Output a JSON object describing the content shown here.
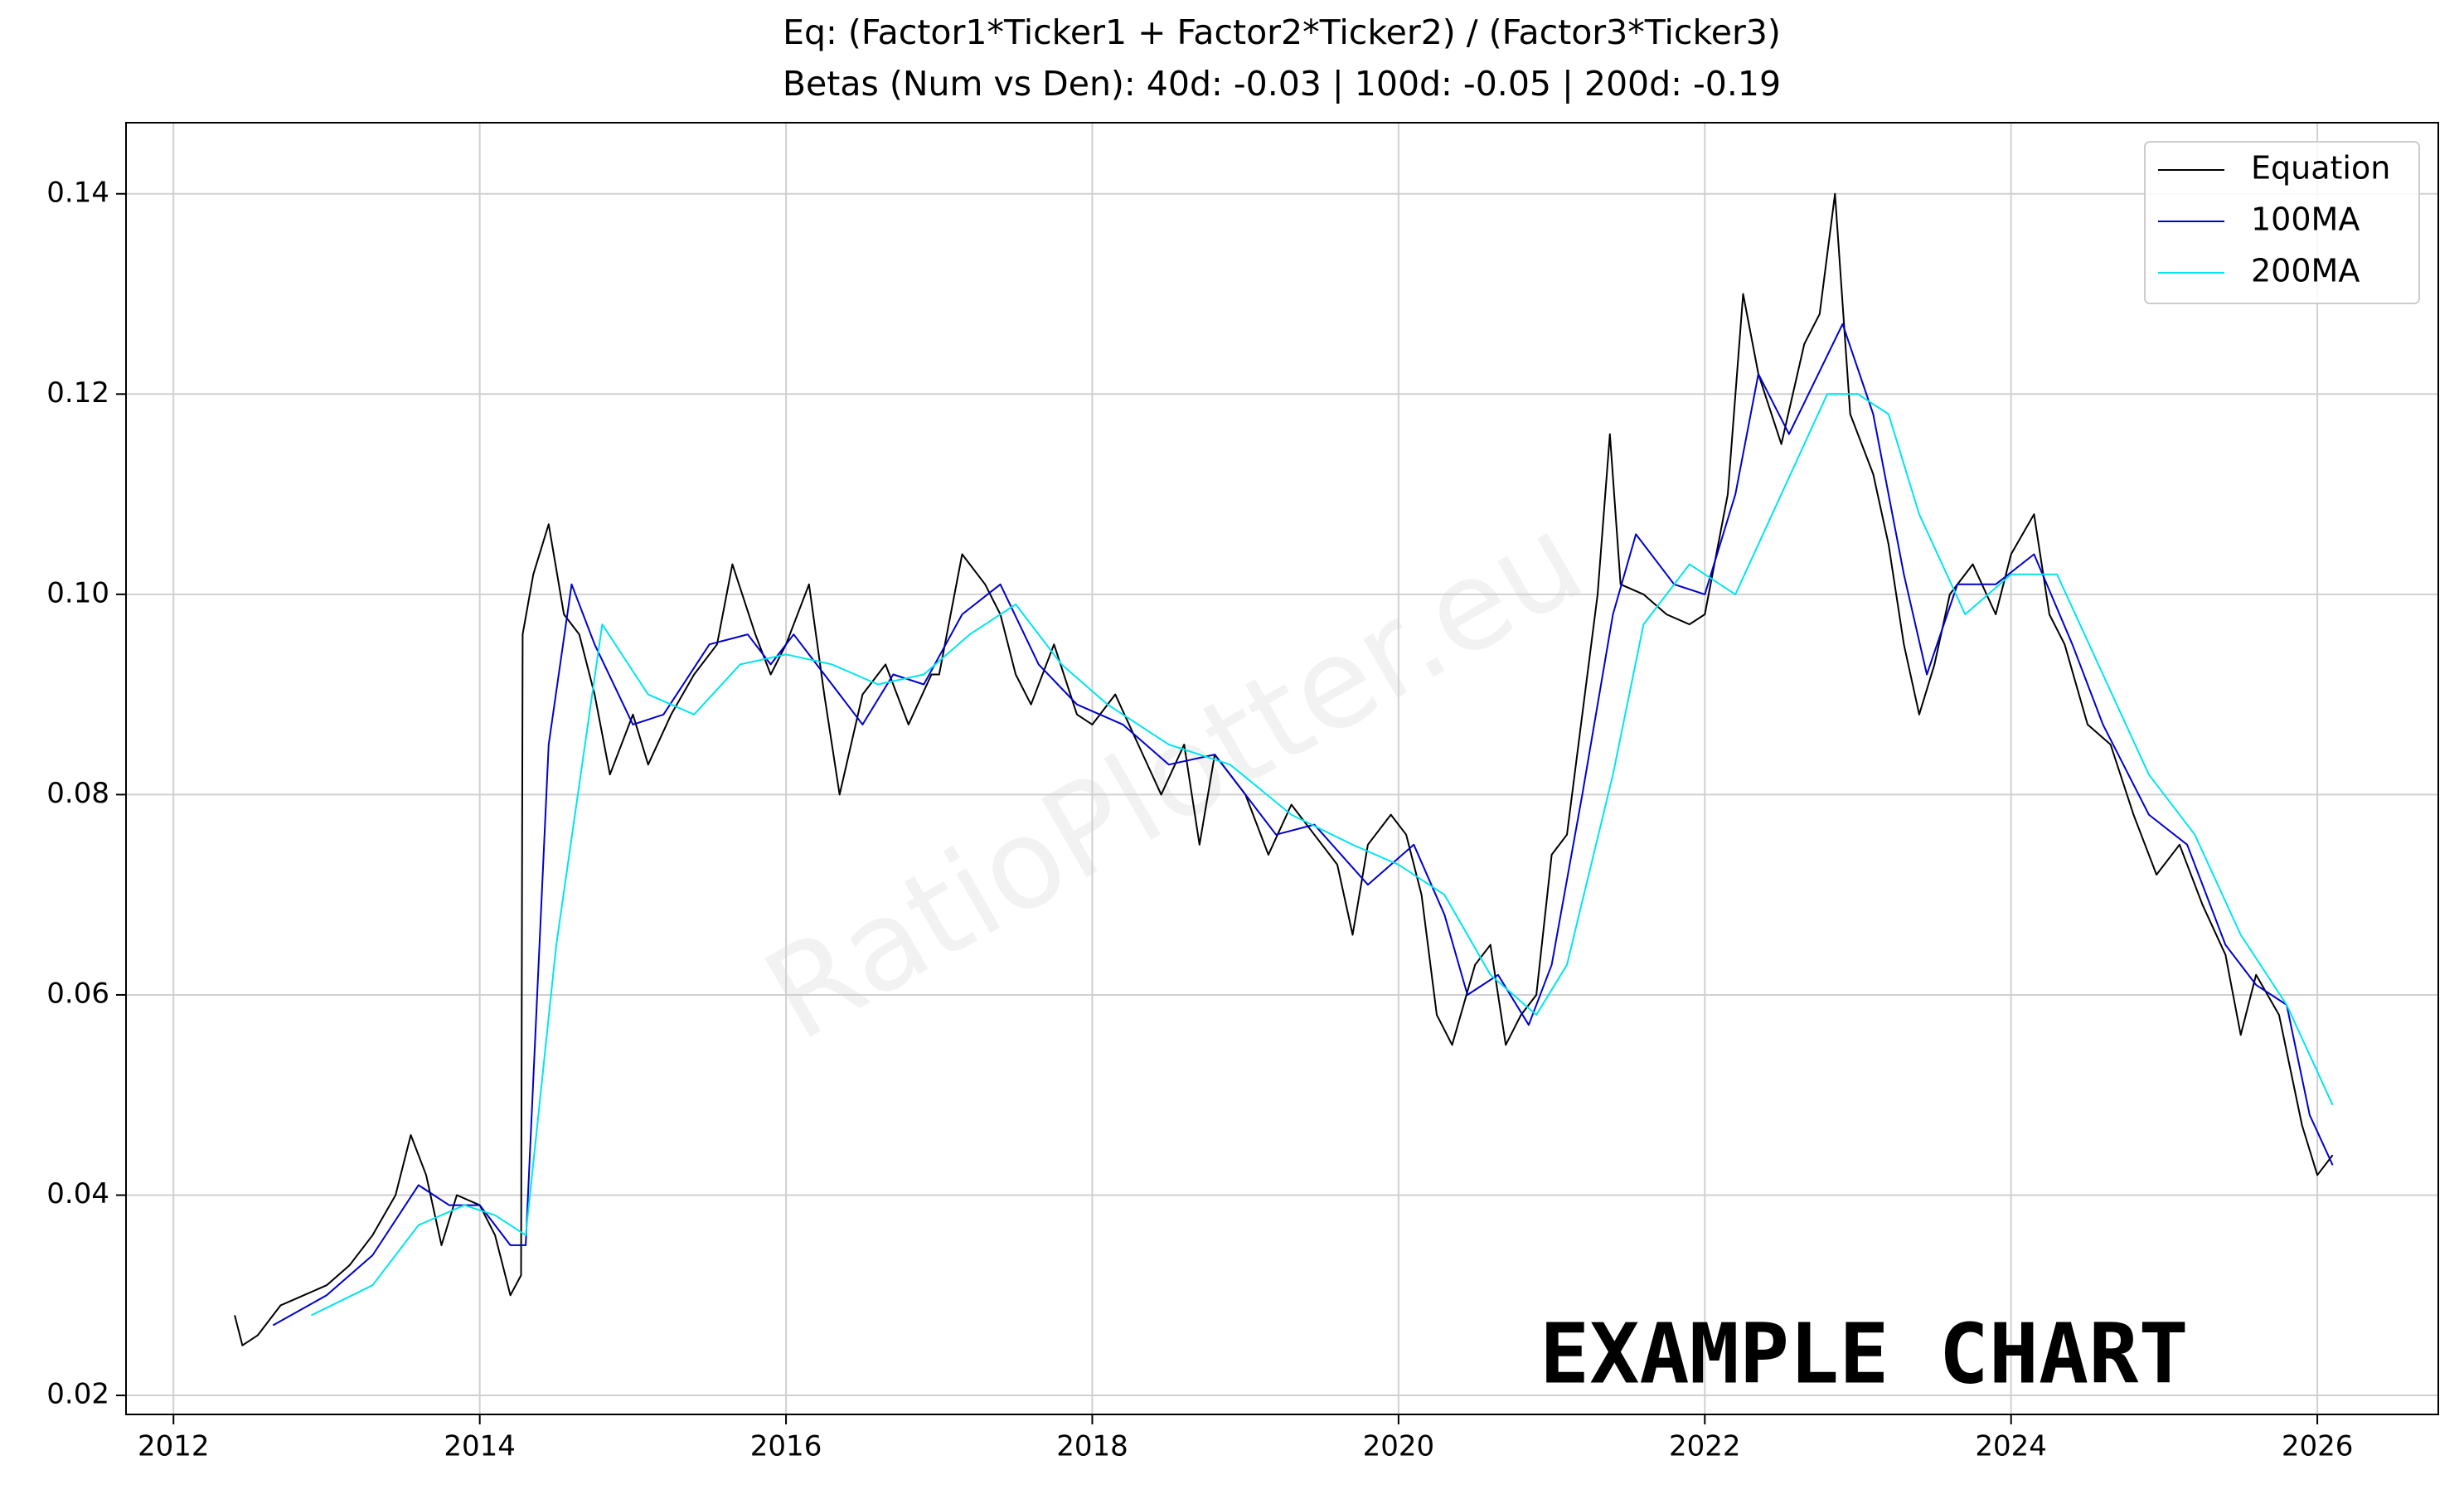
{
  "chart_data": {
    "type": "line",
    "title": "Eq: (Factor1*Ticker1 + Factor2*Ticker2) / (Factor3*Ticker3)",
    "subtitle": "Betas (Num vs Den): 40d: -0.03 | 100d: -0.05 | 200d: -0.19",
    "watermark": "RatioPlotter.eu",
    "annotation": "EXAMPLE CHART",
    "xlim": [
      2011.69,
      2026.79
    ],
    "xticks": [
      2012,
      2014,
      2016,
      2018,
      2020,
      2022,
      2024,
      2026
    ],
    "ylim": [
      0.0181,
      0.1471
    ],
    "yticks": [
      0.02,
      0.04,
      0.06,
      0.08,
      {
        "value": 0.1,
        "label": "0.10"
      },
      {
        "value": 0.12,
        "label": "0.12"
      },
      {
        "value": 0.14,
        "label": "0.14"
      }
    ],
    "grid": true,
    "legend": "upper right",
    "series": [
      {
        "name": "Equation",
        "color": "#000000",
        "x": [
          2012.4,
          2012.45,
          2012.55,
          2012.7,
          2012.85,
          2013.0,
          2013.15,
          2013.3,
          2013.45,
          2013.55,
          2013.65,
          2013.75,
          2013.85,
          2014.0,
          2014.1,
          2014.2,
          2014.27,
          2014.28,
          2014.35,
          2014.45,
          2014.55,
          2014.65,
          2014.75,
          2014.85,
          2015.0,
          2015.1,
          2015.25,
          2015.4,
          2015.55,
          2015.65,
          2015.8,
          2015.9,
          2016.0,
          2016.15,
          2016.25,
          2016.35,
          2016.5,
          2016.65,
          2016.8,
          2016.95,
          2017.0,
          2017.15,
          2017.3,
          2017.4,
          2017.5,
          2017.6,
          2017.75,
          2017.9,
          2018.0,
          2018.15,
          2018.3,
          2018.45,
          2018.6,
          2018.7,
          2018.8,
          2018.9,
          2019.0,
          2019.15,
          2019.3,
          2019.45,
          2019.6,
          2019.7,
          2019.8,
          2019.95,
          2020.05,
          2020.15,
          2020.25,
          2020.35,
          2020.5,
          2020.6,
          2020.7,
          2020.8,
          2020.9,
          2021.0,
          2021.1,
          2021.2,
          2021.3,
          2021.38,
          2021.45,
          2021.6,
          2021.75,
          2021.9,
          2022.0,
          2022.15,
          2022.25,
          2022.35,
          2022.5,
          2022.65,
          2022.75,
          2022.85,
          2022.95,
          2023.1,
          2023.2,
          2023.3,
          2023.4,
          2023.5,
          2023.6,
          2023.75,
          2023.9,
          2024.0,
          2024.15,
          2024.25,
          2024.35,
          2024.5,
          2024.65,
          2024.8,
          2024.95,
          2025.1,
          2025.25,
          2025.4,
          2025.5,
          2025.6,
          2025.75,
          2025.9,
          2026.0,
          2026.1
        ],
        "values": [
          0.028,
          0.025,
          0.026,
          0.029,
          0.03,
          0.031,
          0.033,
          0.036,
          0.04,
          0.046,
          0.042,
          0.035,
          0.04,
          0.039,
          0.036,
          0.03,
          0.032,
          0.096,
          0.102,
          0.107,
          0.098,
          0.096,
          0.09,
          0.082,
          0.088,
          0.083,
          0.088,
          0.092,
          0.095,
          0.103,
          0.096,
          0.092,
          0.095,
          0.101,
          0.09,
          0.08,
          0.09,
          0.093,
          0.087,
          0.092,
          0.092,
          0.104,
          0.101,
          0.098,
          0.092,
          0.089,
          0.095,
          0.088,
          0.087,
          0.09,
          0.085,
          0.08,
          0.085,
          0.075,
          0.084,
          0.082,
          0.08,
          0.074,
          0.079,
          0.076,
          0.073,
          0.066,
          0.075,
          0.078,
          0.076,
          0.07,
          0.058,
          0.055,
          0.063,
          0.065,
          0.055,
          0.058,
          0.06,
          0.074,
          0.076,
          0.088,
          0.1,
          0.116,
          0.101,
          0.1,
          0.098,
          0.097,
          0.098,
          0.11,
          0.13,
          0.122,
          0.115,
          0.125,
          0.128,
          0.14,
          0.118,
          0.112,
          0.105,
          0.095,
          0.088,
          0.093,
          0.1,
          0.103,
          0.098,
          0.104,
          0.108,
          0.098,
          0.095,
          0.087,
          0.085,
          0.078,
          0.072,
          0.075,
          0.069,
          0.064,
          0.056,
          0.062,
          0.058,
          0.047,
          0.042,
          0.044
        ]
      },
      {
        "name": "100MA",
        "color": "#0000cc",
        "x": [
          2012.65,
          2013.0,
          2013.3,
          2013.6,
          2013.8,
          2014.0,
          2014.2,
          2014.3,
          2014.45,
          2014.6,
          2014.75,
          2015.0,
          2015.2,
          2015.5,
          2015.75,
          2015.9,
          2016.05,
          2016.3,
          2016.5,
          2016.7,
          2016.9,
          2017.15,
          2017.4,
          2017.65,
          2017.9,
          2018.2,
          2018.5,
          2018.8,
          2019.0,
          2019.2,
          2019.45,
          2019.8,
          2020.1,
          2020.3,
          2020.45,
          2020.65,
          2020.85,
          2021.0,
          2021.2,
          2021.4,
          2021.55,
          2021.8,
          2022.0,
          2022.2,
          2022.35,
          2022.55,
          2022.9,
          2023.1,
          2023.3,
          2023.45,
          2023.65,
          2023.9,
          2024.15,
          2024.4,
          2024.6,
          2024.9,
          2025.15,
          2025.4,
          2025.6,
          2025.8,
          2025.95,
          2026.1
        ],
        "values": [
          0.027,
          0.03,
          0.034,
          0.041,
          0.039,
          0.039,
          0.035,
          0.035,
          0.085,
          0.101,
          0.095,
          0.087,
          0.088,
          0.095,
          0.096,
          0.093,
          0.096,
          0.091,
          0.087,
          0.092,
          0.091,
          0.098,
          0.101,
          0.093,
          0.089,
          0.087,
          0.083,
          0.084,
          0.08,
          0.076,
          0.077,
          0.071,
          0.075,
          0.068,
          0.06,
          0.062,
          0.057,
          0.063,
          0.08,
          0.098,
          0.106,
          0.101,
          0.1,
          0.11,
          0.122,
          0.116,
          0.127,
          0.118,
          0.102,
          0.092,
          0.101,
          0.101,
          0.104,
          0.095,
          0.087,
          0.078,
          0.075,
          0.065,
          0.061,
          0.059,
          0.048,
          0.043
        ]
      },
      {
        "name": "200MA",
        "color": "#00e5ee",
        "x": [
          2012.9,
          2013.3,
          2013.6,
          2013.9,
          2014.1,
          2014.3,
          2014.5,
          2014.8,
          2015.1,
          2015.4,
          2015.7,
          2016.0,
          2016.3,
          2016.6,
          2016.9,
          2017.2,
          2017.5,
          2017.8,
          2018.1,
          2018.5,
          2018.9,
          2019.3,
          2019.7,
          2020.0,
          2020.3,
          2020.6,
          2020.9,
          2021.1,
          2021.4,
          2021.6,
          2021.9,
          2022.2,
          2022.5,
          2022.8,
          2023.0,
          2023.2,
          2023.4,
          2023.7,
          2024.0,
          2024.3,
          2024.6,
          2024.9,
          2025.2,
          2025.5,
          2025.8,
          2026.1
        ],
        "values": [
          0.028,
          0.031,
          0.037,
          0.039,
          0.038,
          0.036,
          0.065,
          0.097,
          0.09,
          0.088,
          0.093,
          0.094,
          0.093,
          0.091,
          0.092,
          0.096,
          0.099,
          0.093,
          0.089,
          0.085,
          0.083,
          0.078,
          0.075,
          0.073,
          0.07,
          0.062,
          0.058,
          0.063,
          0.082,
          0.097,
          0.103,
          0.1,
          0.11,
          0.12,
          0.12,
          0.118,
          0.108,
          0.098,
          0.102,
          0.102,
          0.092,
          0.082,
          0.076,
          0.066,
          0.059,
          0.049
        ]
      }
    ]
  }
}
